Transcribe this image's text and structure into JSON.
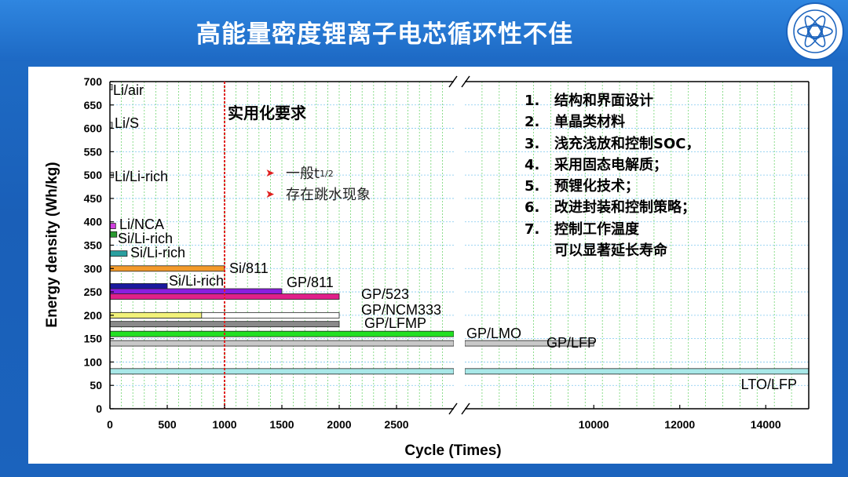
{
  "slide": {
    "title": "高能量密度锂离子电芯循环性不佳"
  },
  "chart_data": {
    "type": "bar",
    "orientation": "horizontal",
    "xlabel": "Cycle (Times)",
    "ylabel": "Energy density (Wh/kg)",
    "ylim": [
      0,
      700
    ],
    "y_ticks": [
      0,
      50,
      100,
      150,
      200,
      250,
      300,
      350,
      400,
      450,
      500,
      550,
      600,
      650,
      700
    ],
    "x_ticks_left": [
      0,
      500,
      1000,
      1500,
      2000,
      2500
    ],
    "x_ticks_right": [
      10000,
      12000,
      14000
    ],
    "x_axis_break": [
      3000,
      7000
    ],
    "xlim": [
      0,
      15000
    ],
    "grid": true,
    "requirement_line": {
      "x": 1000,
      "label": "实用化要求",
      "color": "#e02020"
    },
    "bars": [
      {
        "label": "Li/air",
        "y": 688,
        "cycles": 10,
        "color": "#b8b8b8"
      },
      {
        "label": "Li/S",
        "y": 607,
        "cycles": 20,
        "color": "#b8b8b8"
      },
      {
        "label": "Li/Li-rich",
        "y": 500,
        "cycles": 30,
        "color": "#b8b8b8"
      },
      {
        "label": "Li/NCA",
        "y": 391,
        "cycles": 50,
        "color": "#d040e0"
      },
      {
        "label": "Si/Li-rich",
        "y": 373,
        "cycles": 60,
        "color": "#2a9a30"
      },
      {
        "label": "Si/Li-rich",
        "y": 332,
        "cycles": 150,
        "color": "#2aa0a0"
      },
      {
        "label": "Si/811",
        "y": 300,
        "cycles": 1000,
        "color": "#f39a2a"
      },
      {
        "label": "Si/Li-rich",
        "y": 262,
        "cycles": 500,
        "color": "#1a1a9e"
      },
      {
        "label": "GP/811",
        "y": 251,
        "cycles": 1500,
        "color": "#8a1ee0"
      },
      {
        "label": "GP/523",
        "y": 240,
        "cycles": 2000,
        "color": "#e0208a"
      },
      {
        "label": "GP/NCM333",
        "y": 200,
        "cycles": 2000,
        "color": "#ffffff",
        "inner_cycles": 800,
        "inner_color": "#f2f27a"
      },
      {
        "label": "GP/LFMP",
        "y": 181,
        "cycles": 2000,
        "color": "#8a8a8a"
      },
      {
        "label": "GP/LMO",
        "y": 160,
        "cycles": 3000,
        "color": "#22e022"
      },
      {
        "label": "GP/LFP",
        "y": 140,
        "cycles": 10000,
        "color": "#c8c8c8"
      },
      {
        "label": "LTO/LFP",
        "y": 80,
        "cycles": 15000,
        "color": "#a8e8e8"
      }
    ]
  },
  "bullets": [
    {
      "text": "一般t",
      "sup": "1/2"
    },
    {
      "text": "存在跳水现象",
      "sup": ""
    }
  ],
  "notes": [
    {
      "num": "1.",
      "text": "结构和界面设计"
    },
    {
      "num": "2.",
      "text": "单晶类材料"
    },
    {
      "num": "3.",
      "text": "浅充浅放和控制SOC，"
    },
    {
      "num": "4.",
      "text": "采用固态电解质；"
    },
    {
      "num": "5.",
      "text": "预锂化技术；"
    },
    {
      "num": "6.",
      "text": "改进封装和控制策略；"
    },
    {
      "num": "7.",
      "text": "控制工作温度"
    },
    {
      "num": "",
      "text": "可以显著延长寿命"
    }
  ]
}
